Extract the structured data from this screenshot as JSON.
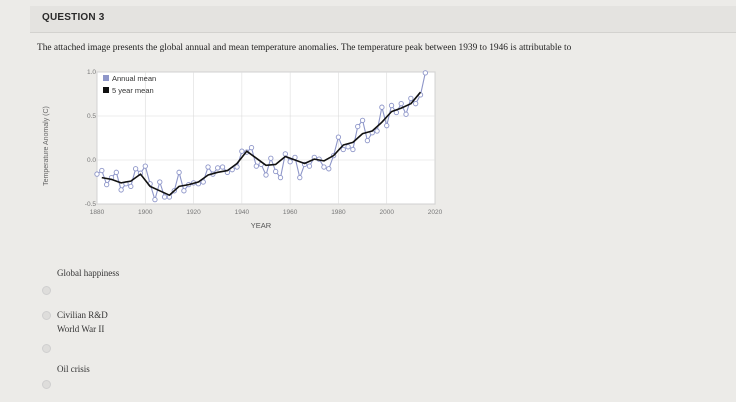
{
  "question": {
    "title": "QUESTION 3",
    "prompt": "The attached image presents the global annual and mean temperature anomalies. The temperature peak between 1939 to 1946 is attributable to"
  },
  "chart_data": {
    "type": "line",
    "title": "",
    "xlabel": "YEAR",
    "ylabel": "Temperature Anomaly (C)",
    "xlim": [
      1880,
      2020
    ],
    "ylim": [
      -0.5,
      1.0
    ],
    "xticks": [
      "1880",
      "1900",
      "1920",
      "1940",
      "1960",
      "1980",
      "2000",
      "2020"
    ],
    "yticks": [
      "-0.5",
      "0.0",
      "0.5",
      "1.0"
    ],
    "grid": true,
    "legend_position": "top-left",
    "series": [
      {
        "name": "Annual mean",
        "color": "#8e96c9",
        "x": [
          1880,
          1882,
          1884,
          1886,
          1888,
          1890,
          1892,
          1894,
          1896,
          1898,
          1900,
          1902,
          1904,
          1906,
          1908,
          1910,
          1912,
          1914,
          1916,
          1918,
          1920,
          1922,
          1924,
          1926,
          1928,
          1930,
          1932,
          1934,
          1936,
          1938,
          1940,
          1942,
          1944,
          1946,
          1948,
          1950,
          1952,
          1954,
          1956,
          1958,
          1960,
          1962,
          1964,
          1966,
          1968,
          1970,
          1972,
          1974,
          1976,
          1978,
          1980,
          1982,
          1984,
          1986,
          1988,
          1990,
          1992,
          1994,
          1996,
          1998,
          2000,
          2002,
          2004,
          2006,
          2008,
          2010,
          2012,
          2014,
          2016
        ],
        "values": [
          -0.16,
          -0.12,
          -0.28,
          -0.2,
          -0.14,
          -0.34,
          -0.27,
          -0.3,
          -0.1,
          -0.15,
          -0.07,
          -0.27,
          -0.45,
          -0.25,
          -0.42,
          -0.42,
          -0.35,
          -0.14,
          -0.35,
          -0.28,
          -0.26,
          -0.27,
          -0.25,
          -0.08,
          -0.16,
          -0.09,
          -0.08,
          -0.14,
          -0.11,
          -0.08,
          0.1,
          0.09,
          0.14,
          -0.07,
          -0.05,
          -0.17,
          0.02,
          -0.13,
          -0.2,
          0.07,
          -0.02,
          0.03,
          -0.2,
          -0.05,
          -0.07,
          0.03,
          0.01,
          -0.08,
          -0.1,
          0.05,
          0.26,
          0.12,
          0.15,
          0.12,
          0.38,
          0.45,
          0.22,
          0.31,
          0.33,
          0.6,
          0.39,
          0.62,
          0.54,
          0.64,
          0.52,
          0.7,
          0.64,
          0.74,
          0.99
        ]
      },
      {
        "name": "5 year mean",
        "color": "#111111",
        "x": [
          1882,
          1886,
          1890,
          1894,
          1898,
          1902,
          1906,
          1910,
          1914,
          1918,
          1922,
          1926,
          1930,
          1934,
          1938,
          1942,
          1946,
          1950,
          1954,
          1958,
          1962,
          1966,
          1970,
          1974,
          1978,
          1982,
          1986,
          1990,
          1994,
          1998,
          2002,
          2006,
          2010,
          2014
        ],
        "values": [
          -0.2,
          -0.22,
          -0.26,
          -0.24,
          -0.16,
          -0.3,
          -0.35,
          -0.4,
          -0.3,
          -0.28,
          -0.25,
          -0.17,
          -0.14,
          -0.12,
          -0.04,
          0.1,
          0.02,
          -0.06,
          -0.05,
          0.04,
          0.0,
          -0.04,
          0.01,
          -0.01,
          0.05,
          0.17,
          0.2,
          0.3,
          0.33,
          0.43,
          0.55,
          0.59,
          0.64,
          0.77
        ]
      }
    ]
  },
  "options": [
    {
      "label": "Global happiness"
    },
    {
      "label": "Civilian R&D"
    },
    {
      "label": "World War II"
    },
    {
      "label": "Oil crisis"
    }
  ]
}
